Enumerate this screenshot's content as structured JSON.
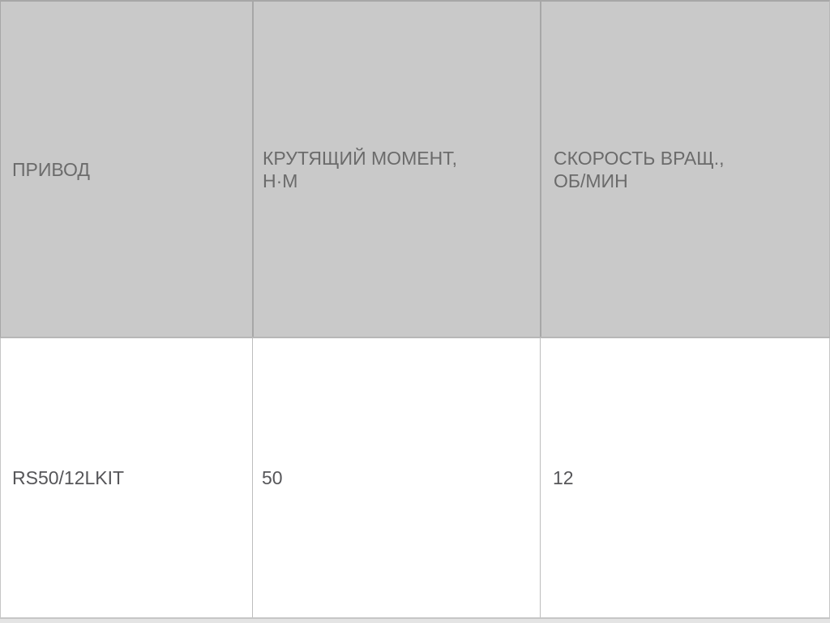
{
  "chart_data": {
    "type": "table",
    "columns": [
      "ПРИВОД",
      "КРУТЯЩИЙ МОМЕНТ,\nН·М",
      "СКОРОСТЬ ВРАЩ.,\nОБ/МИН"
    ],
    "rows": [
      [
        "RS50/12LKIT",
        "50",
        "12"
      ]
    ]
  },
  "colors": {
    "page_bg": "#e4e4e4",
    "header_bg": "#c9c9c9",
    "header_text": "#6b6b6b",
    "header_border": "#a7a7a7",
    "header_bottom_border": "#b7b7b7",
    "body_bg": "#ffffff",
    "body_text": "#565659",
    "body_divider": "#bdbdbd",
    "row_border": "#c6c6c6"
  }
}
